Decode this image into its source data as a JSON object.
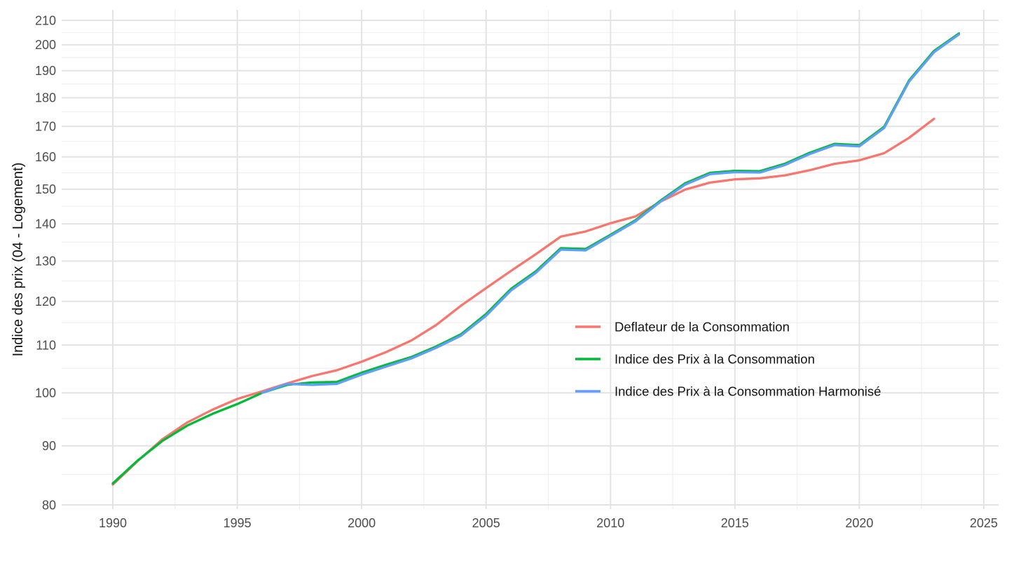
{
  "chart_data": {
    "type": "line",
    "title": "",
    "xlabel": "",
    "ylabel": "Indice des prix (04 - Logement)",
    "y_scale": "log",
    "ylim": [
      80,
      210
    ],
    "xlim": [
      1987.9,
      2025.6
    ],
    "x_ticks": [
      1990,
      1995,
      2000,
      2005,
      2010,
      2015,
      2020,
      2025
    ],
    "y_ticks": [
      80,
      90,
      100,
      110,
      120,
      130,
      140,
      150,
      160,
      170,
      180,
      190,
      200,
      210
    ],
    "x_minor_gridlines": [
      1992.5,
      1997.5,
      2002.5,
      2007.5,
      2012.5,
      2017.5,
      2022.5
    ],
    "y_minor_gridlines": [
      85,
      95,
      105,
      115,
      125,
      135,
      145,
      155,
      165,
      175,
      185,
      195,
      205
    ],
    "grid": "on",
    "legend_position": "inside-right",
    "colors": {
      "deflateur": "#F8766D",
      "ipc": "#00BA38",
      "ipch": "#619CFF",
      "grid_major": "#E3E3E3",
      "grid_minor": "#EFEFEF",
      "tick_text": "#4d4d4d",
      "axis_title_text": "#141414",
      "background": "#FFFFFF"
    },
    "series": [
      {
        "id": "deflateur",
        "name": "Deflateur de la Consommation",
        "color": "#F8766D",
        "start_year": 1990,
        "end_year": 2023,
        "values": [
          83.3,
          87.3,
          91.2,
          94.3,
          96.7,
          98.8,
          100.3,
          101.9,
          103.4,
          104.6,
          106.4,
          108.5,
          111.0,
          114.5,
          119.0,
          123.2,
          127.5,
          131.8,
          136.5,
          137.9,
          140.2,
          142.1,
          146.3,
          149.9,
          152.0,
          153.0,
          153.3,
          154.2,
          155.8,
          157.8,
          158.9,
          161.2,
          166.2,
          172.6
        ]
      },
      {
        "id": "ipc",
        "name": "Indice des Prix à la Consommation",
        "color": "#00BA38",
        "start_year": 1990,
        "end_year": 2024,
        "values": [
          83.5,
          87.4,
          90.9,
          93.7,
          95.9,
          97.8,
          100.0,
          101.6,
          102.1,
          102.2,
          104.1,
          105.8,
          107.4,
          109.7,
          112.4,
          117.0,
          123.0,
          127.4,
          133.4,
          133.2,
          137.0,
          141.0,
          146.6,
          151.8,
          155.0,
          155.6,
          155.5,
          157.8,
          161.3,
          164.2,
          163.8,
          169.9,
          186.3,
          197.6,
          204.6
        ]
      },
      {
        "id": "ipch",
        "name": "Indice des Prix à la Consommation Harmonisé",
        "color": "#619CFF",
        "start_year": 1996,
        "end_year": 2024,
        "values": [
          100.0,
          101.8,
          101.6,
          101.8,
          103.7,
          105.4,
          107.1,
          109.4,
          112.1,
          116.6,
          122.6,
          127.0,
          133.0,
          132.8,
          136.7,
          140.7,
          146.3,
          151.4,
          154.6,
          155.2,
          155.1,
          157.4,
          160.9,
          163.8,
          163.4,
          169.5,
          185.9,
          197.1,
          204.2
        ]
      }
    ]
  }
}
